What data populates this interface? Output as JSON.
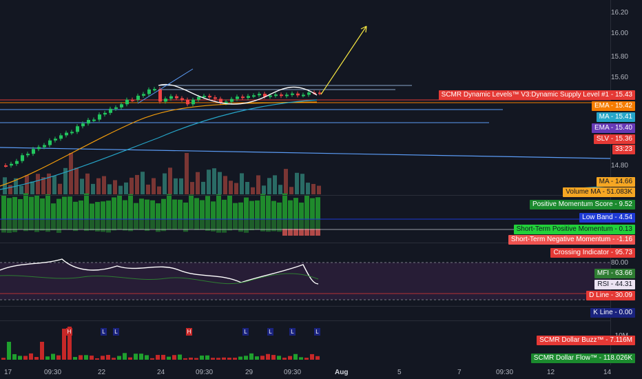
{
  "colors": {
    "bg": "#131722",
    "up": "#26a69a",
    "down": "#ef5350",
    "green": "#22c55e",
    "red": "#ef4444",
    "blue_line": "#5b9cf6",
    "orange": "#f59e0b",
    "yellow": "#f5e642",
    "purple_band": "#2b1f3a"
  },
  "price_axis": {
    "ticks": [
      "16.20",
      "16.00",
      "15.80",
      "15.60",
      "14.80"
    ]
  },
  "oscillator_axis": {
    "ticks": [
      "80.00"
    ]
  },
  "buzz_axis": {
    "ticks": [
      "10M"
    ]
  },
  "x_axis": {
    "ticks": [
      "17",
      "09:30",
      "22",
      "24",
      "09:30",
      "29",
      "09:30",
      "Aug",
      "5",
      "7",
      "09:30",
      "12",
      "14"
    ]
  },
  "labels": {
    "dynamic_supply": "SCMR Dynamic Levels™ V3:Dynamic Supply Level #1 - 15.43",
    "ema1": "EMA - 15.42",
    "ma1": "MA - 15.41",
    "ema2": "EMA - 15.40",
    "slv": "SLV - 15.36",
    "countdown": "33:23",
    "ma2": "MA - 14.66",
    "volume_ma": "Volume MA - 51.083K",
    "pos_momentum_score": "Positive Momentum Score - 9.52",
    "low_band": "Low Band - 4.54",
    "st_pos_momentum": "Short-Term Positive Momentum - 0.13",
    "st_neg_momentum": "Short-Term Negative Momentum - -1.16",
    "crossing_indicator": "Crossing Indicator - 95.73",
    "mfi": "MFI - 63.66",
    "rsi": "RSI - 44.31",
    "d_line": "D Line - 30.09",
    "k_line": "K Line - 0.00",
    "dollar_buzz": "SCMR Dollar Buzz™ - 7.116M",
    "dollar_flow": "SCMR Dollar Flow™ - 118.026K"
  },
  "signals": {
    "h": "H",
    "l": "L"
  }
}
